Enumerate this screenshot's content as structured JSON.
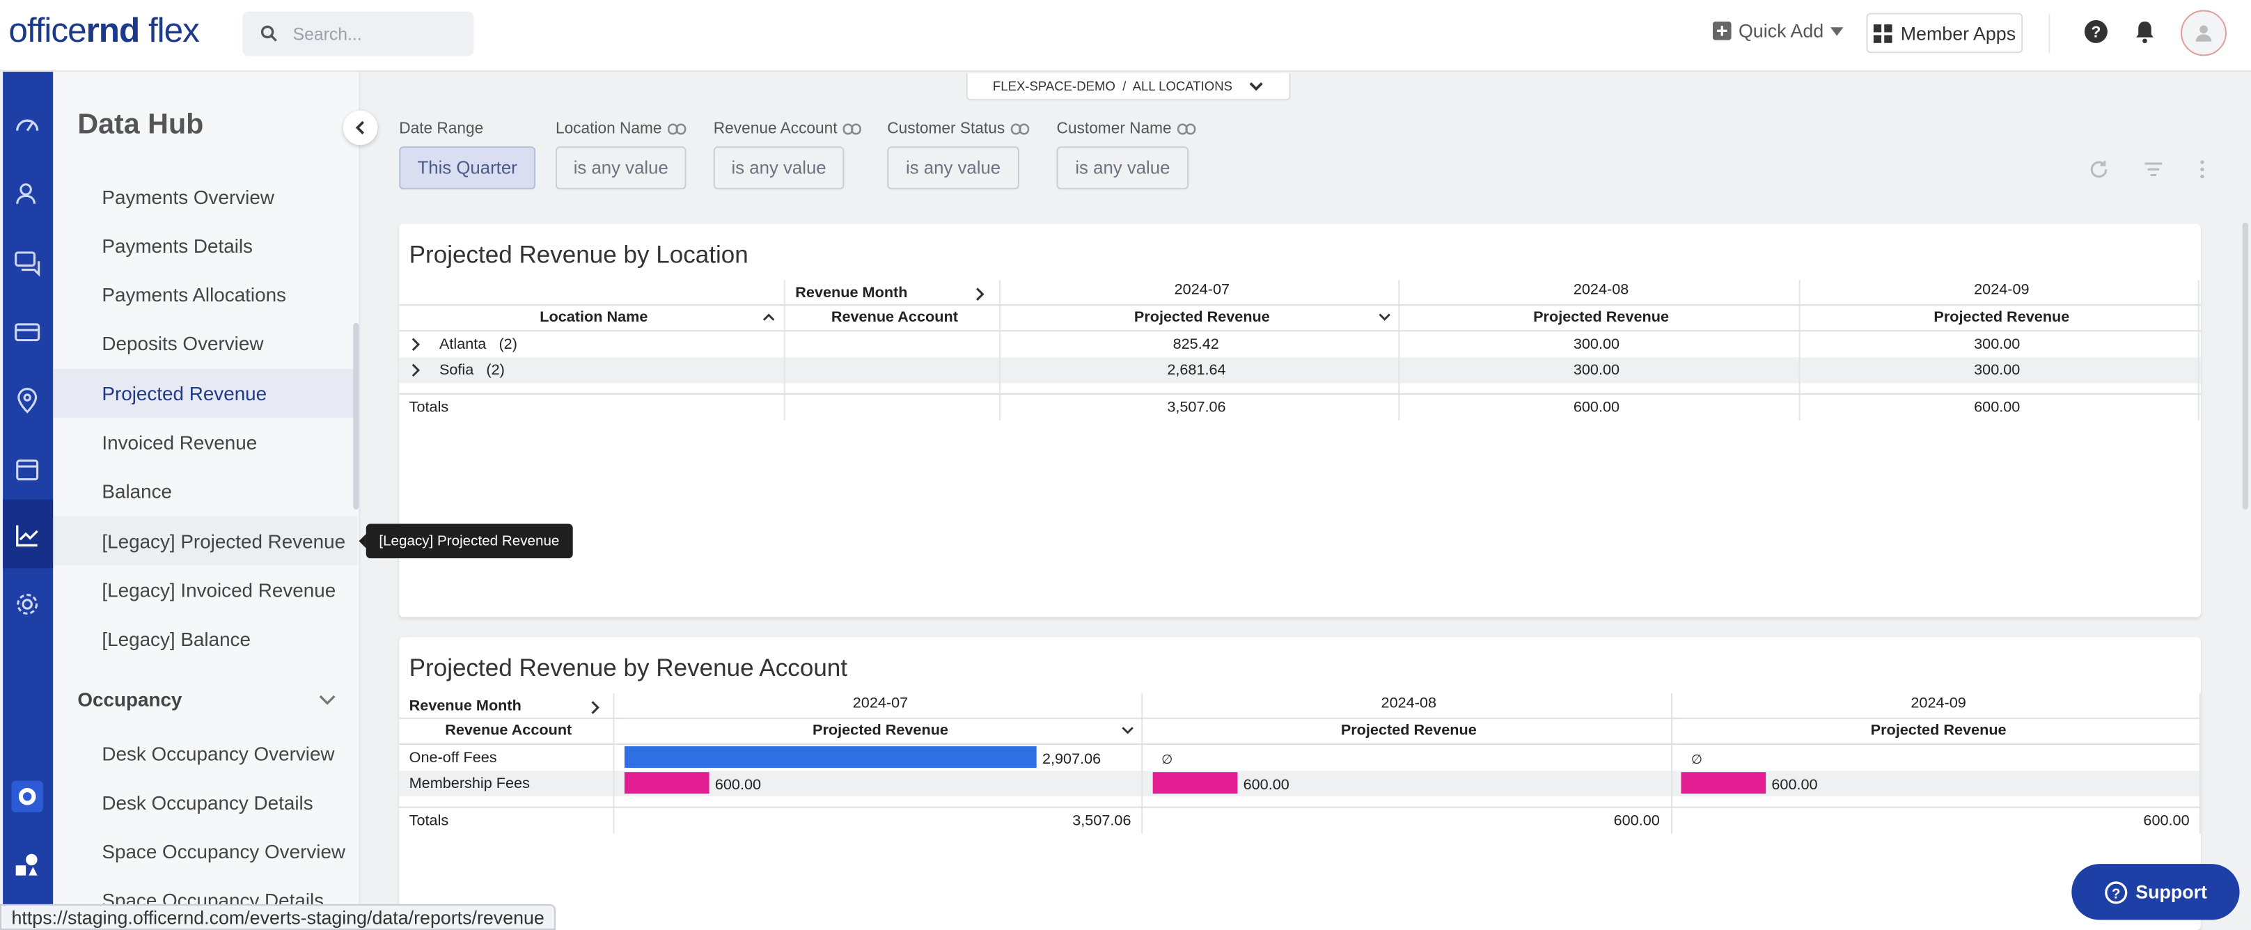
{
  "header": {
    "logo_light": "officernd",
    "logo_bold": "rnd",
    "logo_prefix": "office",
    "logo_suffix": " flex",
    "search_placeholder": "Search...",
    "quick_add": "Quick Add",
    "member_apps": "Member Apps"
  },
  "sidebar": {
    "title": "Data Hub",
    "items": [
      {
        "label": "Payments Overview"
      },
      {
        "label": "Payments Details"
      },
      {
        "label": "Payments Allocations"
      },
      {
        "label": "Deposits Overview"
      },
      {
        "label": "Projected Revenue"
      },
      {
        "label": "Invoiced Revenue"
      },
      {
        "label": "Balance"
      },
      {
        "label": "[Legacy] Projected Revenue"
      },
      {
        "label": "[Legacy] Invoiced Revenue"
      },
      {
        "label": "[Legacy] Balance"
      }
    ],
    "section": "Occupancy",
    "section_items": [
      {
        "label": "Desk Occupancy Overview"
      },
      {
        "label": "Desk Occupancy Details"
      },
      {
        "label": "Space Occupancy Overview"
      },
      {
        "label": "Space Occupancy Details"
      }
    ]
  },
  "tooltip": "[Legacy] Projected Revenue",
  "location_selector": "FLEX-SPACE-DEMO  /  ALL LOCATIONS",
  "filters": [
    {
      "label": "Date Range",
      "value": "This Quarter"
    },
    {
      "label": "Location Name",
      "value": "is any value"
    },
    {
      "label": "Revenue Account",
      "value": "is any value"
    },
    {
      "label": "Customer Status",
      "value": "is any value"
    },
    {
      "label": "Customer Name",
      "value": "is any value"
    }
  ],
  "table1": {
    "title": "Projected Revenue by Location",
    "pivot_header": "Revenue Month",
    "col_location": "Location Name",
    "col_account": "Revenue Account",
    "months": [
      "2024-07",
      "2024-08",
      "2024-09"
    ],
    "measure": "Projected Revenue",
    "rows": [
      {
        "name": "Atlanta",
        "count": "(2)",
        "values": [
          "825.42",
          "300.00",
          "300.00"
        ]
      },
      {
        "name": "Sofia",
        "count": "(2)",
        "values": [
          "2,681.64",
          "300.00",
          "300.00"
        ]
      }
    ],
    "totals_label": "Totals",
    "totals": [
      "3,507.06",
      "600.00",
      "600.00"
    ]
  },
  "table2": {
    "title": "Projected Revenue by Revenue Account",
    "pivot_header": "Revenue Month",
    "col_account": "Revenue Account",
    "months": [
      "2024-07",
      "2024-08",
      "2024-09"
    ],
    "measure": "Projected Revenue",
    "rows": [
      {
        "name": "One-off Fees",
        "values": [
          "2,907.06",
          "∅",
          "∅"
        ]
      },
      {
        "name": "Membership Fees",
        "values": [
          "600.00",
          "600.00",
          "600.00"
        ]
      }
    ],
    "totals_label": "Totals",
    "totals": [
      "3,507.06",
      "600.00",
      "600.00"
    ]
  },
  "chart_data": {
    "type": "table",
    "title": "Projected Revenue by Revenue Account",
    "categories": [
      "2024-07",
      "2024-08",
      "2024-09"
    ],
    "series": [
      {
        "name": "One-off Fees",
        "values": [
          2907.06,
          null,
          null
        ]
      },
      {
        "name": "Membership Fees",
        "values": [
          600.0,
          600.0,
          600.0
        ]
      }
    ],
    "colors": {
      "One-off Fees": "#2f6fe4",
      "Membership Fees": "#e21d92"
    }
  },
  "status_url": "https://staging.officernd.com/everts-staging/data/reports/revenue",
  "support_label": "Support",
  "colors": {
    "brand": "#1e3fa5",
    "accent_active": "#1f3a8a",
    "bar_blue": "#2f6fe4",
    "bar_pink": "#e21d92"
  }
}
